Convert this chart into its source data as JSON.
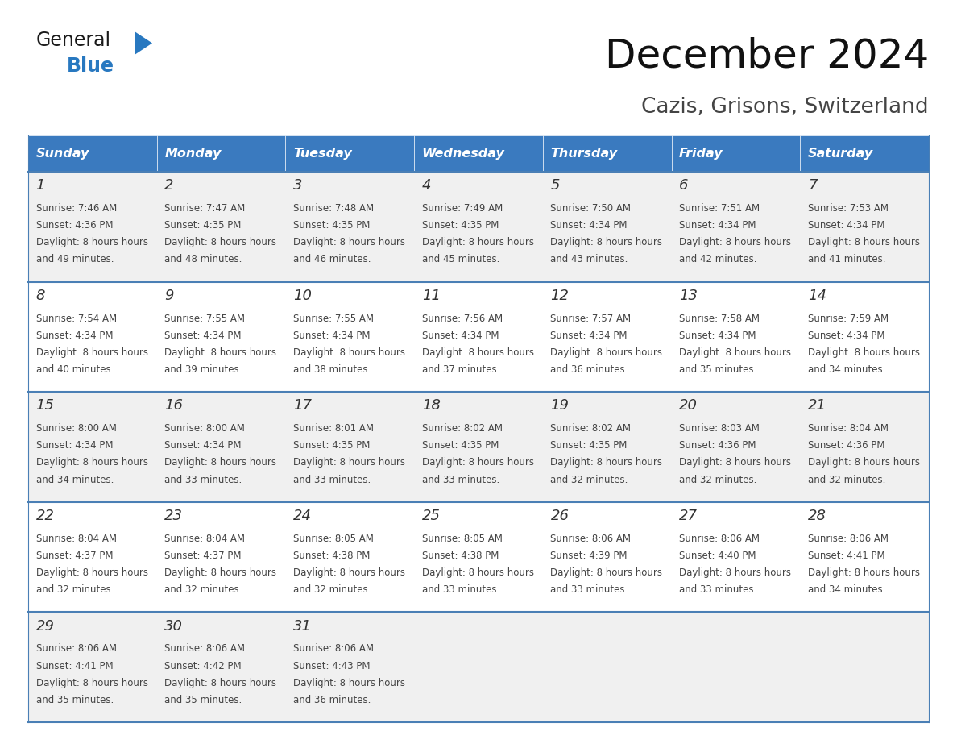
{
  "title": "December 2024",
  "subtitle": "Cazis, Grisons, Switzerland",
  "days_of_week": [
    "Sunday",
    "Monday",
    "Tuesday",
    "Wednesday",
    "Thursday",
    "Friday",
    "Saturday"
  ],
  "header_bg": "#3a7abf",
  "header_text": "#ffffff",
  "row_bg_odd": "#f0f0f0",
  "row_bg_even": "#ffffff",
  "cell_text_color": "#444444",
  "day_num_color": "#333333",
  "border_color": "#4a7fb5",
  "calendar_data": [
    [
      {
        "day": "1",
        "sunrise": "7:46 AM",
        "sunset": "4:36 PM",
        "daylight": "8 hours and 49 minutes"
      },
      {
        "day": "2",
        "sunrise": "7:47 AM",
        "sunset": "4:35 PM",
        "daylight": "8 hours and 48 minutes"
      },
      {
        "day": "3",
        "sunrise": "7:48 AM",
        "sunset": "4:35 PM",
        "daylight": "8 hours and 46 minutes"
      },
      {
        "day": "4",
        "sunrise": "7:49 AM",
        "sunset": "4:35 PM",
        "daylight": "8 hours and 45 minutes"
      },
      {
        "day": "5",
        "sunrise": "7:50 AM",
        "sunset": "4:34 PM",
        "daylight": "8 hours and 43 minutes"
      },
      {
        "day": "6",
        "sunrise": "7:51 AM",
        "sunset": "4:34 PM",
        "daylight": "8 hours and 42 minutes"
      },
      {
        "day": "7",
        "sunrise": "7:53 AM",
        "sunset": "4:34 PM",
        "daylight": "8 hours and 41 minutes"
      }
    ],
    [
      {
        "day": "8",
        "sunrise": "7:54 AM",
        "sunset": "4:34 PM",
        "daylight": "8 hours and 40 minutes"
      },
      {
        "day": "9",
        "sunrise": "7:55 AM",
        "sunset": "4:34 PM",
        "daylight": "8 hours and 39 minutes"
      },
      {
        "day": "10",
        "sunrise": "7:55 AM",
        "sunset": "4:34 PM",
        "daylight": "8 hours and 38 minutes"
      },
      {
        "day": "11",
        "sunrise": "7:56 AM",
        "sunset": "4:34 PM",
        "daylight": "8 hours and 37 minutes"
      },
      {
        "day": "12",
        "sunrise": "7:57 AM",
        "sunset": "4:34 PM",
        "daylight": "8 hours and 36 minutes"
      },
      {
        "day": "13",
        "sunrise": "7:58 AM",
        "sunset": "4:34 PM",
        "daylight": "8 hours and 35 minutes"
      },
      {
        "day": "14",
        "sunrise": "7:59 AM",
        "sunset": "4:34 PM",
        "daylight": "8 hours and 34 minutes"
      }
    ],
    [
      {
        "day": "15",
        "sunrise": "8:00 AM",
        "sunset": "4:34 PM",
        "daylight": "8 hours and 34 minutes"
      },
      {
        "day": "16",
        "sunrise": "8:00 AM",
        "sunset": "4:34 PM",
        "daylight": "8 hours and 33 minutes"
      },
      {
        "day": "17",
        "sunrise": "8:01 AM",
        "sunset": "4:35 PM",
        "daylight": "8 hours and 33 minutes"
      },
      {
        "day": "18",
        "sunrise": "8:02 AM",
        "sunset": "4:35 PM",
        "daylight": "8 hours and 33 minutes"
      },
      {
        "day": "19",
        "sunrise": "8:02 AM",
        "sunset": "4:35 PM",
        "daylight": "8 hours and 32 minutes"
      },
      {
        "day": "20",
        "sunrise": "8:03 AM",
        "sunset": "4:36 PM",
        "daylight": "8 hours and 32 minutes"
      },
      {
        "day": "21",
        "sunrise": "8:04 AM",
        "sunset": "4:36 PM",
        "daylight": "8 hours and 32 minutes"
      }
    ],
    [
      {
        "day": "22",
        "sunrise": "8:04 AM",
        "sunset": "4:37 PM",
        "daylight": "8 hours and 32 minutes"
      },
      {
        "day": "23",
        "sunrise": "8:04 AM",
        "sunset": "4:37 PM",
        "daylight": "8 hours and 32 minutes"
      },
      {
        "day": "24",
        "sunrise": "8:05 AM",
        "sunset": "4:38 PM",
        "daylight": "8 hours and 32 minutes"
      },
      {
        "day": "25",
        "sunrise": "8:05 AM",
        "sunset": "4:38 PM",
        "daylight": "8 hours and 33 minutes"
      },
      {
        "day": "26",
        "sunrise": "8:06 AM",
        "sunset": "4:39 PM",
        "daylight": "8 hours and 33 minutes"
      },
      {
        "day": "27",
        "sunrise": "8:06 AM",
        "sunset": "4:40 PM",
        "daylight": "8 hours and 33 minutes"
      },
      {
        "day": "28",
        "sunrise": "8:06 AM",
        "sunset": "4:41 PM",
        "daylight": "8 hours and 34 minutes"
      }
    ],
    [
      {
        "day": "29",
        "sunrise": "8:06 AM",
        "sunset": "4:41 PM",
        "daylight": "8 hours and 35 minutes"
      },
      {
        "day": "30",
        "sunrise": "8:06 AM",
        "sunset": "4:42 PM",
        "daylight": "8 hours and 35 minutes"
      },
      {
        "day": "31",
        "sunrise": "8:06 AM",
        "sunset": "4:43 PM",
        "daylight": "8 hours and 36 minutes"
      },
      null,
      null,
      null,
      null
    ]
  ],
  "logo_general_color": "#1a1a1a",
  "logo_blue_color": "#2878c0",
  "logo_triangle_color": "#2878c0"
}
